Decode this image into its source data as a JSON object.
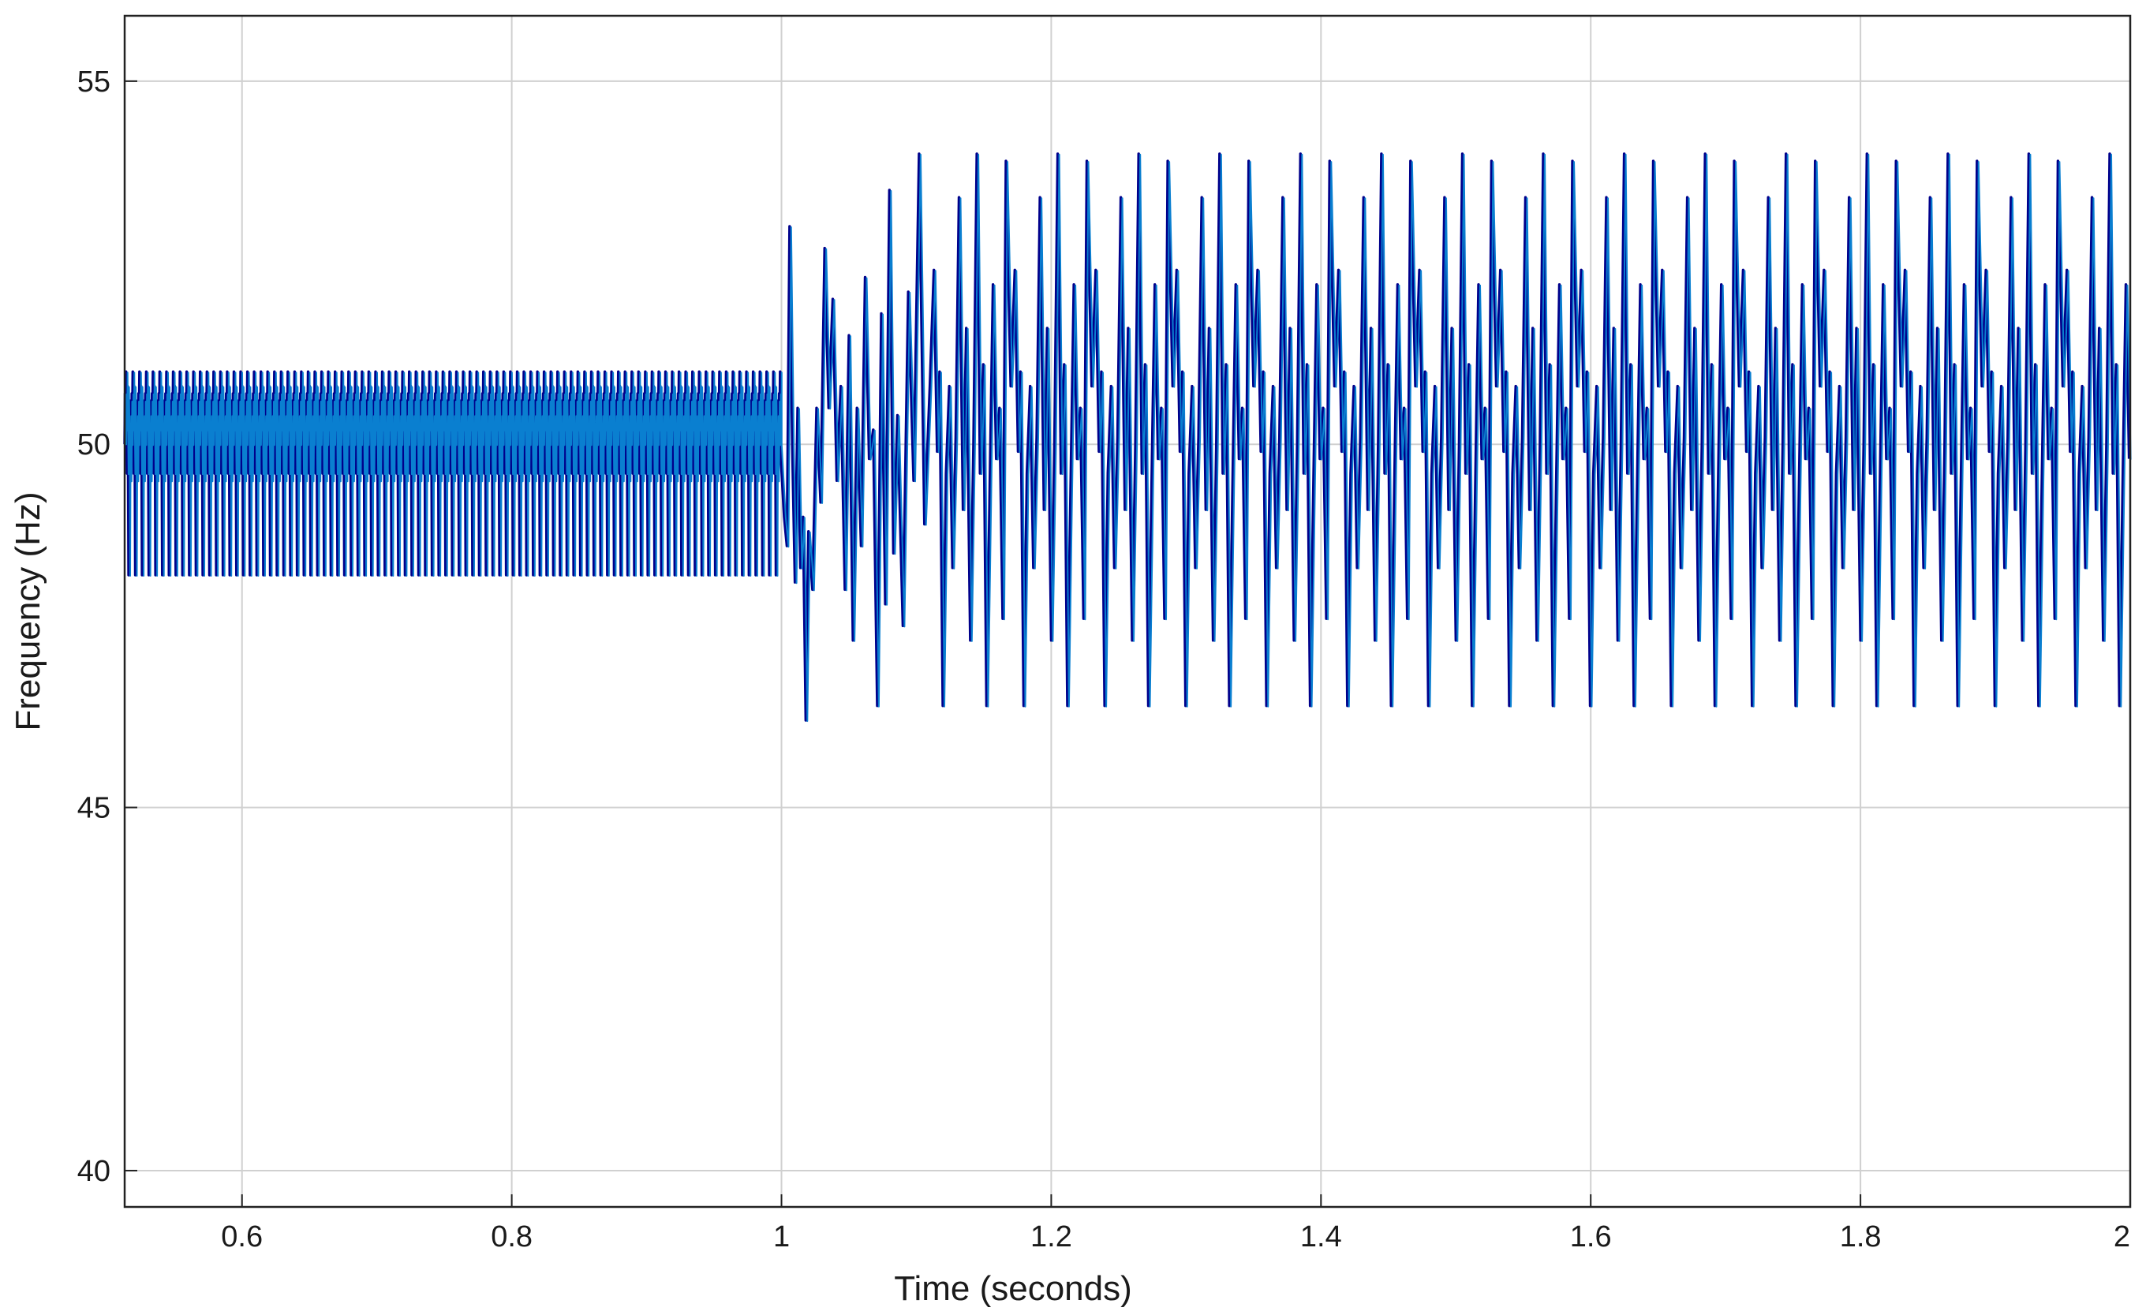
{
  "chart_data": {
    "type": "line",
    "title": "",
    "xlabel": "Time (seconds)",
    "ylabel": "Frequency (Hz)",
    "xlim": [
      0.513,
      2.0
    ],
    "ylim": [
      39.5,
      55.9
    ],
    "xticks": [
      0.6,
      0.8,
      1,
      1.2,
      1.4,
      1.6,
      1.8,
      2
    ],
    "xtick_labels": [
      "0.6",
      "0.8",
      "1",
      "1.2",
      "1.4",
      "1.6",
      "1.8",
      "2"
    ],
    "yticks": [
      40,
      45,
      50,
      55
    ],
    "ytick_labels": [
      "40",
      "45",
      "50",
      "55"
    ],
    "grid": true,
    "line_colors": [
      "#00008b",
      "#0a7fd0"
    ],
    "series": [
      {
        "segments": [
          {
            "x_start": 0.513,
            "x_end": 0.999,
            "period": 0.005,
            "pattern_frac": [
              0,
              0.06,
              0.12,
              0.2,
              0.26,
              0.34,
              0.42,
              0.5,
              0.58,
              0.64,
              0.72,
              0.8,
              0.88,
              0.94,
              1.0
            ],
            "pattern_y": [
              50.0,
              50.7,
              50.2,
              51.0,
              50.3,
              49.6,
              50.8,
              50.1,
              48.2,
              49.7,
              50.4,
              49.5,
              50.6,
              50.0,
              50.0
            ]
          },
          {
            "x": [
              0.999,
              1.002,
              1.004,
              1.006,
              1.008,
              1.01,
              1.012,
              1.014,
              1.016,
              1.018,
              1.02,
              1.023,
              1.026,
              1.029,
              1.032,
              1.035,
              1.038,
              1.041,
              1.044,
              1.047,
              1.05,
              1.053,
              1.056,
              1.059,
              1.062,
              1.065,
              1.068,
              1.071,
              1.074,
              1.077,
              1.08,
              1.083,
              1.086,
              1.09,
              1.094,
              1.098,
              1.102,
              1.106,
              1.11
            ],
            "y": [
              50.0,
              49.0,
              48.6,
              53.0,
              50.0,
              48.1,
              50.5,
              48.3,
              49.0,
              46.2,
              48.8,
              48.0,
              50.5,
              49.2,
              52.7,
              50.5,
              52.0,
              49.5,
              50.8,
              48.0,
              51.5,
              47.3,
              50.5,
              48.6,
              52.3,
              49.8,
              50.2,
              46.4,
              51.8,
              47.8,
              53.5,
              48.5,
              50.4,
              47.5,
              52.1,
              49.5,
              54.0,
              48.9,
              50.8
            ]
          },
          {
            "x_start": 1.11,
            "x_end": 2.0,
            "period": 0.06,
            "pattern_frac": [
              0,
              0.05,
              0.09,
              0.12,
              0.16,
              0.2,
              0.24,
              0.28,
              0.32,
              0.36,
              0.41,
              0.45,
              0.5,
              0.54,
              0.58,
              0.62,
              0.66,
              0.7,
              0.74,
              0.78,
              0.82,
              0.86,
              0.9,
              0.94,
              1.0
            ],
            "pattern_y": [
              50.8,
              52.4,
              49.9,
              51.0,
              46.4,
              49.6,
              50.8,
              48.3,
              50.1,
              53.4,
              49.1,
              51.6,
              47.3,
              50.0,
              54.0,
              49.6,
              51.1,
              46.4,
              49.4,
              52.2,
              49.8,
              50.5,
              47.6,
              53.9,
              50.8
            ]
          }
        ]
      }
    ]
  }
}
